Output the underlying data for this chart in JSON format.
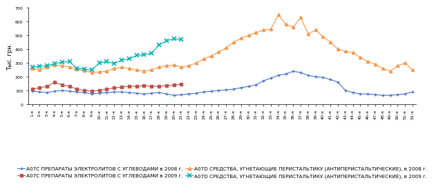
{
  "title": "",
  "ylabel": "Тыс. грн.",
  "ylim": [
    0,
    700
  ],
  "yticks": [
    0,
    100,
    200,
    300,
    400,
    500,
    600,
    700
  ],
  "background_color": "#ffffff",
  "series": {
    "A07C_2008": {
      "label": "А07С ПРЕПАРАТЫ ЭЛЕКТРОЛИТОВ С УГЛЕВОДАМИ в 2008 г.",
      "color": "#4472c4",
      "marker": "+",
      "values": [
        95,
        90,
        85,
        95,
        100,
        95,
        90,
        85,
        75,
        80,
        85,
        90,
        90,
        85,
        80,
        75,
        80,
        85,
        75,
        65,
        70,
        75,
        80,
        90,
        95,
        100,
        105,
        110,
        120,
        130,
        140,
        170,
        190,
        210,
        220,
        240,
        230,
        210,
        200,
        195,
        180,
        160,
        100,
        85,
        75,
        75,
        70,
        65,
        65,
        70,
        75,
        90
      ]
    },
    "A07C_2009": {
      "label": "А07С ПРЕПАРАТЫ ЭЛЕКТРОЛИТОВ С УГЛЕВОДАМИ в 2009 г.",
      "color": "#c0504d",
      "marker": "s",
      "values": [
        110,
        120,
        130,
        160,
        140,
        130,
        110,
        100,
        95,
        100,
        110,
        120,
        125,
        130,
        130,
        135,
        130,
        130,
        135,
        140,
        145
      ]
    },
    "A07D_2008": {
      "label": "А07D СРЕДСТВА, УГНЕТАЮЩИЕ ПЕРИСТАЛЬТИКУ (АНТИПЕРИСТАЛЬТИЧЕСКИЕ), в 2008 г.",
      "color": "#f79646",
      "marker": "^",
      "values": [
        260,
        250,
        270,
        285,
        280,
        270,
        255,
        245,
        230,
        235,
        240,
        260,
        270,
        260,
        250,
        240,
        250,
        270,
        280,
        285,
        270,
        280,
        300,
        330,
        350,
        380,
        410,
        450,
        480,
        500,
        520,
        540,
        545,
        650,
        580,
        560,
        630,
        510,
        540,
        490,
        450,
        400,
        385,
        375,
        340,
        310,
        290,
        260,
        240,
        280,
        300,
        250
      ]
    },
    "A07D_2009": {
      "label": "А07D СРЕДСТВА, УГНЕТАЮЩИЕ ПЕРИСТАЛЬТИКУ (АНТИПЕРИСТАЛЬТИЧЕСКИЕ), в 2009 г.",
      "color": "#00b0b0",
      "marker": "x",
      "values": [
        270,
        275,
        280,
        295,
        305,
        310,
        260,
        255,
        250,
        300,
        310,
        295,
        320,
        330,
        355,
        360,
        370,
        430,
        460,
        475,
        470
      ]
    }
  },
  "xtick_labels": [
    "1-я",
    "2-я",
    "3-я",
    "4-я",
    "5-я",
    "6-я",
    "7-я",
    "8-я",
    "9-я",
    "10-я",
    "11-я",
    "12-я",
    "13-я",
    "14-я",
    "15-я",
    "16-я",
    "17-я",
    "18-я",
    "19-я",
    "20-я",
    "21-я",
    "22-я",
    "23-я",
    "24-я",
    "25-я",
    "26-я",
    "27-я",
    "28-я",
    "29-я",
    "30-я",
    "31-я",
    "32-я",
    "33-я",
    "34-я",
    "35-я",
    "36-я",
    "37-я",
    "38-я",
    "39-я",
    "40-я",
    "41-я",
    "42-я",
    "43-я",
    "44-я",
    "45-я",
    "46-я",
    "47-я",
    "48-я",
    "49-я",
    "50-я",
    "51-я",
    "52-я"
  ],
  "legend_fontsize": 5.2,
  "axis_fontsize": 6,
  "tick_fontsize": 4.5
}
